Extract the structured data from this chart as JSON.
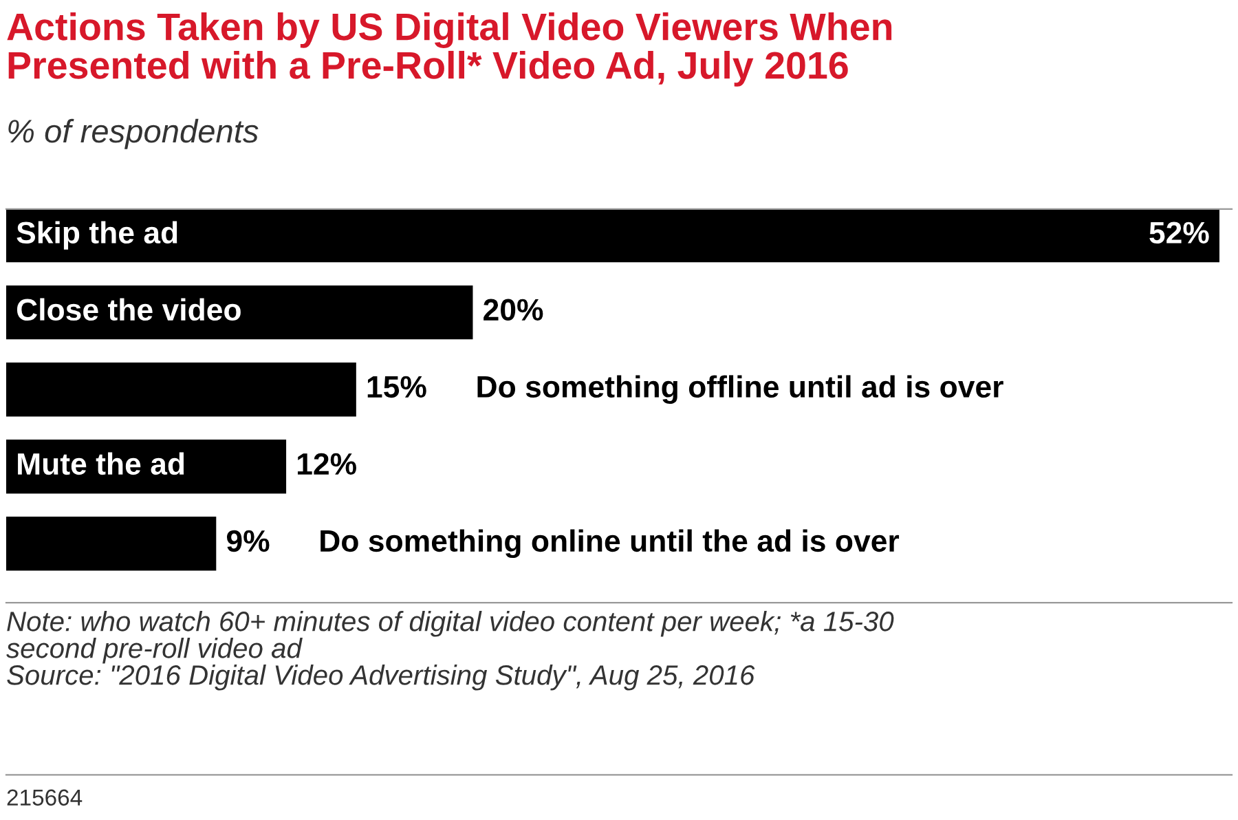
{
  "chart_data": {
    "type": "bar",
    "orientation": "horizontal",
    "title": "Actions Taken by US Digital Video Viewers When\nPresented with a Pre-Roll* Video Ad, July 2016",
    "subtitle": "% of respondents",
    "categories": [
      "Skip the ad",
      "Close the video",
      "Do something offline until ad is over",
      "Mute the ad",
      "Do something online until the ad is over"
    ],
    "values": [
      52,
      20,
      15,
      12,
      9
    ],
    "value_labels": [
      "52%",
      "20%",
      "15%",
      "12%",
      "9%"
    ],
    "color": "#000000",
    "annotations": [
      "Note: who watch 60+ minutes of digital video content per week; *a 15-30\nsecond pre-roll video ad\nSource: \"2016 Digital Video Advertising Study\", Aug 25, 2016",
      "215664"
    ]
  }
}
